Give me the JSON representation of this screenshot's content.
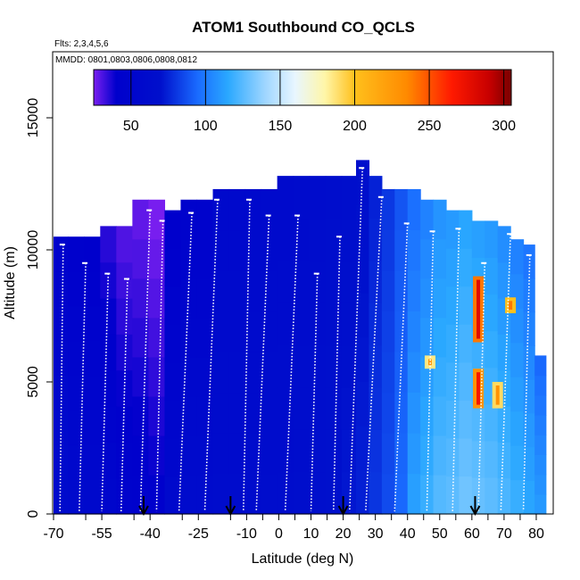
{
  "chart_data": {
    "type": "heatmap",
    "title": "ATOM1 Southbound CO_QCLS",
    "subtitle_flights": "Flts: 2,3,4,5,6",
    "subtitle_dates": "MMDD: 0801,0803,0806,0808,0812",
    "xlabel": "Latitude (deg N)",
    "ylabel": "Altitude (m)",
    "xlim": [
      -70,
      85
    ],
    "ylim": [
      0,
      17500
    ],
    "x_ticks": [
      -70,
      -55,
      -40,
      -25,
      -10,
      0,
      10,
      20,
      30,
      40,
      50,
      60,
      70,
      80
    ],
    "x_tick_labels": [
      "-70",
      "-55",
      "-40",
      "-25",
      "-10",
      "0",
      "10",
      "20",
      "30",
      "40",
      "50",
      "60",
      "70",
      "80"
    ],
    "x_minor_ticks": [
      -60,
      -45,
      -30,
      -15,
      -5,
      5,
      15,
      25,
      35,
      45,
      55,
      65,
      75
    ],
    "y_ticks": [
      0,
      5000,
      10000,
      15000
    ],
    "y_tick_labels": [
      "0",
      "5000",
      "10000",
      "15000"
    ],
    "colorbar": {
      "min": 25,
      "max": 305,
      "ticks": [
        50,
        100,
        150,
        200,
        250,
        300
      ],
      "tick_labels": [
        "50",
        "100",
        "150",
        "200",
        "250",
        "300"
      ],
      "stops": [
        {
          "v": 25,
          "c": "#7a1ff0"
        },
        {
          "v": 40,
          "c": "#0000cc"
        },
        {
          "v": 70,
          "c": "#0010cc"
        },
        {
          "v": 95,
          "c": "#1a6cff"
        },
        {
          "v": 115,
          "c": "#2aa8ff"
        },
        {
          "v": 140,
          "c": "#9fd6ff"
        },
        {
          "v": 160,
          "c": "#e8f6ff"
        },
        {
          "v": 180,
          "c": "#fff6a8"
        },
        {
          "v": 200,
          "c": "#ffc01c"
        },
        {
          "v": 235,
          "c": "#ff8a00"
        },
        {
          "v": 265,
          "c": "#ff1a00"
        },
        {
          "v": 290,
          "c": "#c80000"
        },
        {
          "v": 305,
          "c": "#7a0000"
        }
      ]
    },
    "arrows_latitude": [
      -42,
      -15,
      20,
      61
    ],
    "columns": [
      {
        "lat": -68,
        "top": 10500,
        "value": 55
      },
      {
        "lat": -63,
        "top": 10500,
        "value": 52
      },
      {
        "lat": -58,
        "top": 10500,
        "value": 50
      },
      {
        "lat": -53,
        "top": 10900,
        "value": 45
      },
      {
        "lat": -48,
        "top": 10900,
        "value": 40
      },
      {
        "lat": -43,
        "top": 11900,
        "value": 38
      },
      {
        "lat": -38,
        "top": 11900,
        "value": 35
      },
      {
        "lat": -33,
        "top": 11500,
        "value": 50
      },
      {
        "lat": -28,
        "top": 11900,
        "value": 55
      },
      {
        "lat": -23,
        "top": 11900,
        "value": 55
      },
      {
        "lat": -18,
        "top": 12300,
        "value": 56
      },
      {
        "lat": -13,
        "top": 12300,
        "value": 56
      },
      {
        "lat": -8,
        "top": 12300,
        "value": 57
      },
      {
        "lat": -3,
        "top": 12300,
        "value": 58
      },
      {
        "lat": 2,
        "top": 12800,
        "value": 58
      },
      {
        "lat": 7,
        "top": 12800,
        "value": 60
      },
      {
        "lat": 12,
        "top": 12800,
        "value": 62
      },
      {
        "lat": 17,
        "top": 12800,
        "value": 64
      },
      {
        "lat": 22,
        "top": 12800,
        "value": 66
      },
      {
        "lat": 26,
        "top": 13400,
        "value": 68
      },
      {
        "lat": 30,
        "top": 12800,
        "value": 74
      },
      {
        "lat": 34,
        "top": 12300,
        "value": 80
      },
      {
        "lat": 38,
        "top": 12300,
        "value": 88
      },
      {
        "lat": 42,
        "top": 12300,
        "value": 94
      },
      {
        "lat": 46,
        "top": 11900,
        "value": 100
      },
      {
        "lat": 50,
        "top": 11900,
        "value": 106
      },
      {
        "lat": 54,
        "top": 11500,
        "value": 108
      },
      {
        "lat": 58,
        "top": 11500,
        "value": 112
      },
      {
        "lat": 62,
        "top": 11100,
        "value": 110
      },
      {
        "lat": 66,
        "top": 11100,
        "value": 108
      },
      {
        "lat": 70,
        "top": 10900,
        "value": 104
      },
      {
        "lat": 74,
        "top": 10400,
        "value": 100
      },
      {
        "lat": 78,
        "top": 10200,
        "value": 96
      },
      {
        "lat": 81,
        "top": 6000,
        "value": 92
      }
    ],
    "hotspots": [
      {
        "lat": 62,
        "alt_low": 6500,
        "alt_high": 9000,
        "value": 240
      },
      {
        "lat": 62,
        "alt_low": 4000,
        "alt_high": 5500,
        "value": 230
      },
      {
        "lat": 68,
        "alt_low": 4000,
        "alt_high": 5000,
        "value": 190
      },
      {
        "lat": 47,
        "alt_low": 5500,
        "alt_high": 6000,
        "value": 185
      },
      {
        "lat": 72,
        "alt_low": 7600,
        "alt_high": 8200,
        "value": 200
      }
    ],
    "profiles": [
      {
        "lat_top": -67,
        "lat_bottom": -68,
        "top": 10200
      },
      {
        "lat_top": -60,
        "lat_bottom": -62,
        "top": 9500
      },
      {
        "lat_top": -53,
        "lat_bottom": -55,
        "top": 9100
      },
      {
        "lat_top": -47,
        "lat_bottom": -49,
        "top": 8900
      },
      {
        "lat_top": -40,
        "lat_bottom": -43,
        "top": 11500
      },
      {
        "lat_top": -36,
        "lat_bottom": -38,
        "top": 11100
      },
      {
        "lat_top": -27,
        "lat_bottom": -31,
        "top": 11400
      },
      {
        "lat_top": -19,
        "lat_bottom": -23,
        "top": 11900
      },
      {
        "lat_top": -9,
        "lat_bottom": -11,
        "top": 11900
      },
      {
        "lat_top": -3,
        "lat_bottom": -7,
        "top": 11300
      },
      {
        "lat_top": 6,
        "lat_bottom": 2,
        "top": 11300
      },
      {
        "lat_top": 12,
        "lat_bottom": 10,
        "top": 9100
      },
      {
        "lat_top": 19,
        "lat_bottom": 17,
        "top": 10500
      },
      {
        "lat_top": 26,
        "lat_bottom": 22,
        "top": 13100
      },
      {
        "lat_top": 32,
        "lat_bottom": 27,
        "top": 12000
      },
      {
        "lat_top": 40,
        "lat_bottom": 36,
        "top": 11000
      },
      {
        "lat_top": 48,
        "lat_bottom": 46,
        "top": 10700
      },
      {
        "lat_top": 56,
        "lat_bottom": 54,
        "top": 10800
      },
      {
        "lat_top": 64,
        "lat_bottom": 62,
        "top": 9500
      },
      {
        "lat_top": 72,
        "lat_bottom": 69,
        "top": 10600
      },
      {
        "lat_top": 78,
        "lat_bottom": 76,
        "top": 9800
      }
    ]
  }
}
